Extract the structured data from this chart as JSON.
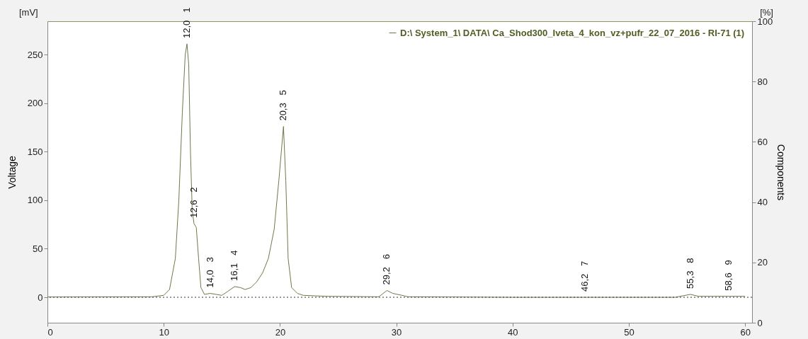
{
  "chart_data": {
    "type": "line",
    "xlim": [
      0,
      60.6
    ],
    "xticks": [
      0,
      10,
      20,
      30,
      40,
      50,
      60
    ],
    "ylim": [
      -26.2,
      284.3
    ],
    "yticks": [
      0,
      50,
      100,
      150,
      200,
      250
    ],
    "y2lim": [
      0,
      100
    ],
    "y2ticks": [
      0,
      20,
      40,
      60,
      80,
      100
    ],
    "ylabel": "Voltage",
    "y2label": "Components",
    "legend": "top right",
    "grid": false,
    "line_style": "solid",
    "marker": "none",
    "series": [
      {
        "name": "D:\\ System_1\\ DATA\\ Ca_Shod300_Iveta_4_kon_vz+pufr_22_07_2016 - RI-71 (1)",
        "color": "#6b7a4a",
        "x": [
          0,
          9,
          10,
          10.5,
          11,
          11.3,
          11.6,
          11.85,
          12.0,
          12.15,
          12.3,
          12.45,
          12.6,
          12.8,
          13.0,
          13.2,
          13.5,
          14.0,
          14.5,
          15.0,
          15.5,
          16.1,
          16.6,
          17.0,
          17.5,
          18.0,
          18.5,
          19.0,
          19.5,
          19.9,
          20.3,
          20.5,
          20.7,
          21.0,
          21.5,
          22,
          24,
          28.5,
          29.2,
          29.7,
          30.5,
          31,
          40,
          46.2,
          54,
          55.3,
          56,
          58.6,
          60
        ],
        "values": [
          0.3,
          0.5,
          2,
          8,
          40,
          100,
          190,
          250,
          261,
          240,
          150,
          90,
          76,
          72,
          40,
          10,
          3,
          4,
          3,
          2,
          6,
          11,
          10,
          8,
          10,
          16,
          25,
          40,
          70,
          120,
          176,
          120,
          40,
          10,
          4,
          2,
          1,
          0.5,
          7,
          4,
          2,
          0.5,
          0,
          0,
          0,
          3,
          1,
          1,
          1
        ]
      }
    ],
    "ref_lines": [
      {
        "axis": "y",
        "value": 0,
        "line_style": "dotted",
        "color": "#333333"
      }
    ],
    "annotations": [
      "[mV]",
      "[%]",
      {
        "text": "12,0   1",
        "x": 12.0,
        "y": 261
      },
      {
        "text": "12,6   2",
        "x": 12.6,
        "y": 76
      },
      {
        "text": "14,0   3",
        "x": 14.0,
        "y": 4
      },
      {
        "text": "16,1   4",
        "x": 16.1,
        "y": 11
      },
      {
        "text": "20,3   5",
        "x": 20.3,
        "y": 176
      },
      {
        "text": "29,2   6",
        "x": 29.2,
        "y": 7
      },
      {
        "text": "46,2   7",
        "x": 46.2,
        "y": 0
      },
      {
        "text": "55,3   8",
        "x": 55.3,
        "y": 3
      },
      {
        "text": "58,6   9",
        "x": 58.6,
        "y": 1
      }
    ]
  }
}
